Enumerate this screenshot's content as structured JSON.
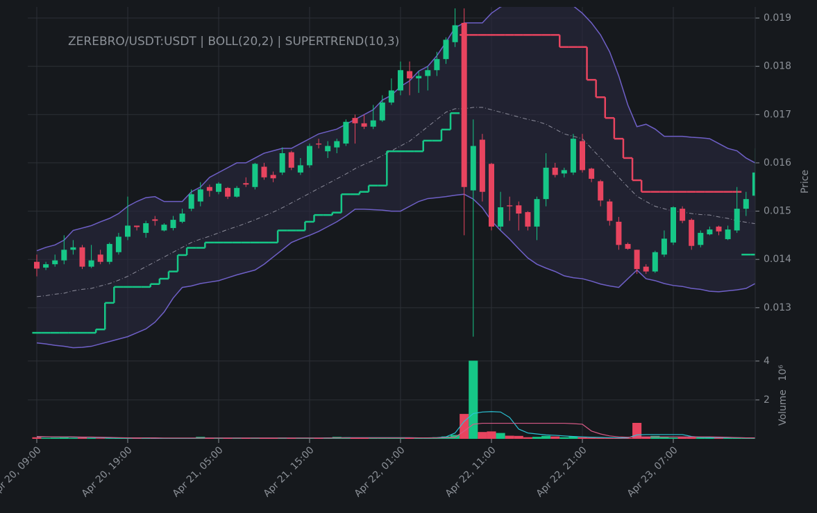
{
  "chart_data": {
    "type": "candlestick",
    "title": "ZEREBRO/USDT:USDT | BOLL(20,2) | SUPERTREND(10,3)",
    "x": [
      "Apr 20, 09:00",
      "Apr 20, 10:00",
      "Apr 20, 11:00",
      "Apr 20, 12:00",
      "Apr 20, 13:00",
      "Apr 20, 14:00",
      "Apr 20, 15:00",
      "Apr 20, 16:00",
      "Apr 20, 17:00",
      "Apr 20, 18:00",
      "Apr 20, 19:00",
      "Apr 20, 20:00",
      "Apr 20, 21:00",
      "Apr 20, 22:00",
      "Apr 20, 23:00",
      "Apr 21, 00:00",
      "Apr 21, 01:00",
      "Apr 21, 02:00",
      "Apr 21, 03:00",
      "Apr 21, 04:00",
      "Apr 21, 05:00",
      "Apr 21, 06:00",
      "Apr 21, 07:00",
      "Apr 21, 08:00",
      "Apr 21, 09:00",
      "Apr 21, 10:00",
      "Apr 21, 11:00",
      "Apr 21, 12:00",
      "Apr 21, 13:00",
      "Apr 21, 14:00",
      "Apr 21, 15:00",
      "Apr 21, 16:00",
      "Apr 21, 17:00",
      "Apr 21, 18:00",
      "Apr 21, 19:00",
      "Apr 21, 20:00",
      "Apr 21, 21:00",
      "Apr 21, 22:00",
      "Apr 21, 23:00",
      "Apr 22, 00:00",
      "Apr 22, 01:00",
      "Apr 22, 02:00",
      "Apr 22, 03:00",
      "Apr 22, 04:00",
      "Apr 22, 05:00",
      "Apr 22, 06:00",
      "Apr 22, 07:00",
      "Apr 22, 08:00",
      "Apr 22, 09:00",
      "Apr 22, 10:00",
      "Apr 22, 11:00",
      "Apr 22, 12:00",
      "Apr 22, 13:00",
      "Apr 22, 14:00",
      "Apr 22, 15:00",
      "Apr 22, 16:00",
      "Apr 22, 17:00",
      "Apr 22, 18:00",
      "Apr 22, 19:00",
      "Apr 22, 20:00",
      "Apr 22, 21:00",
      "Apr 22, 22:00",
      "Apr 22, 23:00",
      "Apr 23, 00:00",
      "Apr 23, 01:00",
      "Apr 23, 02:00",
      "Apr 23, 03:00",
      "Apr 23, 04:00",
      "Apr 23, 05:00",
      "Apr 23, 06:00",
      "Apr 23, 07:00",
      "Apr 23, 08:00",
      "Apr 23, 09:00",
      "Apr 23, 10:00",
      "Apr 23, 11:00",
      "Apr 23, 12:00",
      "Apr 23, 13:00",
      "Apr 23, 14:00",
      "Apr 23, 15:00",
      "Apr 23, 16:00"
    ],
    "open": [
      0.01395,
      0.01383,
      0.0139,
      0.01398,
      0.0142,
      0.01425,
      0.01385,
      0.0141,
      0.01395,
      0.01415,
      0.01447,
      0.0147,
      0.01455,
      0.01483,
      0.0146,
      0.01465,
      0.01478,
      0.01505,
      0.0152,
      0.0155,
      0.0154,
      0.01548,
      0.0153,
      0.01558,
      0.0155,
      0.01592,
      0.01575,
      0.0158,
      0.01622,
      0.0158,
      0.01595,
      0.0164,
      0.01624,
      0.01632,
      0.0164,
      0.01693,
      0.01682,
      0.01675,
      0.01688,
      0.01725,
      0.0175,
      0.0179,
      0.01775,
      0.0178,
      0.01792,
      0.01815,
      0.0185,
      0.0189,
      0.01543,
      0.01648,
      0.01598,
      0.01468,
      0.01512,
      0.01512,
      0.01498,
      0.01468,
      0.01525,
      0.0159,
      0.01578,
      0.0158,
      0.01645,
      0.01588,
      0.01562,
      0.0152,
      0.01478,
      0.01432,
      0.0142,
      0.01385,
      0.01375,
      0.0141,
      0.01435,
      0.01505,
      0.01482,
      0.0143,
      0.01452,
      0.01468,
      0.01442,
      0.0146,
      0.01505,
      0.01532
    ],
    "high": [
      0.0141,
      0.01395,
      0.0141,
      0.0145,
      0.0144,
      0.0143,
      0.0143,
      0.0142,
      0.01435,
      0.01455,
      0.0153,
      0.0147,
      0.0148,
      0.0149,
      0.01475,
      0.0149,
      0.01505,
      0.01545,
      0.0156,
      0.01555,
      0.0156,
      0.0155,
      0.01552,
      0.0157,
      0.016,
      0.016,
      0.01582,
      0.01632,
      0.01625,
      0.0161,
      0.0164,
      0.0165,
      0.01645,
      0.0165,
      0.0169,
      0.017,
      0.017,
      0.0172,
      0.0174,
      0.01775,
      0.0181,
      0.0181,
      0.0179,
      0.018,
      0.0183,
      0.0186,
      0.0192,
      0.0192,
      0.0169,
      0.0166,
      0.016,
      0.0154,
      0.0153,
      0.0152,
      0.015,
      0.0153,
      0.0162,
      0.016,
      0.0159,
      0.0166,
      0.0166,
      0.0159,
      0.01565,
      0.01525,
      0.01488,
      0.01435,
      0.0142,
      0.0139,
      0.01418,
      0.0146,
      0.0151,
      0.0151,
      0.01485,
      0.0146,
      0.01468,
      0.0147,
      0.0147,
      0.0155,
      0.0154,
      0.0163
    ],
    "low": [
      0.01365,
      0.01378,
      0.01385,
      0.0139,
      0.0141,
      0.0138,
      0.01382,
      0.0139,
      0.0139,
      0.0141,
      0.0144,
      0.0146,
      0.01445,
      0.0147,
      0.01458,
      0.0146,
      0.01475,
      0.015,
      0.0151,
      0.0153,
      0.01535,
      0.01525,
      0.01528,
      0.0155,
      0.01545,
      0.01565,
      0.0156,
      0.01575,
      0.01585,
      0.01575,
      0.0159,
      0.0163,
      0.0161,
      0.0162,
      0.01635,
      0.0164,
      0.0167,
      0.0167,
      0.01685,
      0.0172,
      0.0174,
      0.0174,
      0.01745,
      0.0175,
      0.0178,
      0.01805,
      0.0184,
      0.0145,
      0.0124,
      0.0152,
      0.0146,
      0.0146,
      0.0148,
      0.0146,
      0.0146,
      0.0144,
      0.0151,
      0.0157,
      0.0157,
      0.01575,
      0.0158,
      0.0156,
      0.0151,
      0.0147,
      0.0142,
      0.0142,
      0.0137,
      0.0137,
      0.01372,
      0.01405,
      0.0143,
      0.01475,
      0.0142,
      0.01425,
      0.0145,
      0.0145,
      0.0144,
      0.01455,
      0.0149,
      0.0153
    ],
    "close": [
      0.01381,
      0.0139,
      0.01398,
      0.0142,
      0.01425,
      0.01385,
      0.01398,
      0.01395,
      0.01432,
      0.01447,
      0.0147,
      0.01467,
      0.01475,
      0.0148,
      0.01472,
      0.01482,
      0.01495,
      0.01535,
      0.01545,
      0.01542,
      0.01557,
      0.0153,
      0.01548,
      0.01555,
      0.01598,
      0.0157,
      0.01568,
      0.0162,
      0.0159,
      0.01595,
      0.01635,
      0.01638,
      0.01635,
      0.01645,
      0.01685,
      0.01682,
      0.01675,
      0.01688,
      0.01725,
      0.0175,
      0.01792,
      0.01775,
      0.0178,
      0.01792,
      0.01815,
      0.01855,
      0.01885,
      0.0155,
      0.01635,
      0.0154,
      0.01468,
      0.01508,
      0.0151,
      0.01495,
      0.01468,
      0.01525,
      0.0159,
      0.01575,
      0.01585,
      0.0165,
      0.01585,
      0.01567,
      0.01522,
      0.0148,
      0.0143,
      0.01422,
      0.0138,
      0.01375,
      0.01415,
      0.01443,
      0.01508,
      0.0148,
      0.01428,
      0.01455,
      0.01462,
      0.01458,
      0.01462,
      0.01505,
      0.01525,
      0.0158
    ],
    "up_color": "#16c787",
    "down_color": "#e8445f",
    "ylim": [
      0.01205,
      0.01923
    ],
    "yticks": [
      0.013,
      0.014,
      0.015,
      0.016,
      0.017,
      0.018,
      0.019
    ],
    "ylabel": "Price",
    "grid": true,
    "bollinger": {
      "color": "#6f60c8",
      "middle_color": "#8e8e9c",
      "fill": "#2a2840",
      "upper": [
        0.01418,
        0.01425,
        0.0143,
        0.0144,
        0.0146,
        0.01465,
        0.0147,
        0.01478,
        0.01485,
        0.01495,
        0.0151,
        0.0152,
        0.01528,
        0.0153,
        0.0152,
        0.0152,
        0.0152,
        0.0154,
        0.0155,
        0.0157,
        0.0158,
        0.0159,
        0.016,
        0.016,
        0.0161,
        0.0162,
        0.01625,
        0.0163,
        0.0163,
        0.0164,
        0.0165,
        0.0166,
        0.01665,
        0.0167,
        0.0168,
        0.0169,
        0.017,
        0.0171,
        0.0173,
        0.0174,
        0.01758,
        0.0177,
        0.0179,
        0.018,
        0.01822,
        0.0185,
        0.0188,
        0.0189,
        0.0189,
        0.0189,
        0.0191,
        0.01923,
        0.0193,
        0.0193,
        0.0193,
        0.0193,
        0.0193,
        0.0193,
        0.0193,
        0.01925,
        0.0191,
        0.0189,
        0.01865,
        0.0183,
        0.0178,
        0.0172,
        0.01675,
        0.0168,
        0.0167,
        0.01655,
        0.01655,
        0.01655,
        0.01653,
        0.01652,
        0.0165,
        0.0164,
        0.0163,
        0.01625,
        0.0161,
        0.016
      ],
      "middle": [
        0.01323,
        0.01325,
        0.01328,
        0.0133,
        0.01335,
        0.01338,
        0.0134,
        0.01345,
        0.0135,
        0.01357,
        0.01365,
        0.01375,
        0.01385,
        0.01395,
        0.01405,
        0.01415,
        0.01425,
        0.01435,
        0.01442,
        0.01448,
        0.01455,
        0.01462,
        0.01468,
        0.01475,
        0.01482,
        0.0149,
        0.01498,
        0.01507,
        0.01517,
        0.01527,
        0.01537,
        0.01547,
        0.01557,
        0.01567,
        0.01577,
        0.01588,
        0.01597,
        0.01605,
        0.01615,
        0.01625,
        0.01635,
        0.01645,
        0.0166,
        0.01675,
        0.0169,
        0.01705,
        0.01712,
        0.01712,
        0.01715,
        0.01715,
        0.0171,
        0.01705,
        0.017,
        0.01695,
        0.0169,
        0.01686,
        0.0168,
        0.0167,
        0.0166,
        0.01655,
        0.0165,
        0.0163,
        0.0161,
        0.0159,
        0.0157,
        0.0155,
        0.01531,
        0.0152,
        0.0151,
        0.01505,
        0.015,
        0.01498,
        0.01495,
        0.01493,
        0.01492,
        0.01488,
        0.01485,
        0.0148,
        0.01477,
        0.01474
      ],
      "lower": [
        0.01227,
        0.01225,
        0.01222,
        0.0122,
        0.01217,
        0.01218,
        0.0122,
        0.01225,
        0.0123,
        0.01235,
        0.0124,
        0.01248,
        0.01256,
        0.0127,
        0.01291,
        0.0132,
        0.01342,
        0.01345,
        0.0135,
        0.01353,
        0.01356,
        0.01362,
        0.01368,
        0.01373,
        0.01378,
        0.0139,
        0.01405,
        0.0142,
        0.01435,
        0.01443,
        0.0145,
        0.01458,
        0.01468,
        0.01478,
        0.0149,
        0.01504,
        0.01504,
        0.01503,
        0.01502,
        0.015,
        0.015,
        0.0151,
        0.0152,
        0.01526,
        0.01528,
        0.0153,
        0.01533,
        0.01535,
        0.01525,
        0.01507,
        0.0148,
        0.0146,
        0.01442,
        0.01422,
        0.01403,
        0.0139,
        0.01382,
        0.01375,
        0.01366,
        0.01362,
        0.0136,
        0.01355,
        0.01349,
        0.01345,
        0.01342,
        0.0136,
        0.01378,
        0.0136,
        0.01356,
        0.0135,
        0.01346,
        0.01344,
        0.0134,
        0.01338,
        0.01334,
        0.01333,
        0.01335,
        0.01337,
        0.0134,
        0.0135
      ]
    },
    "supertrend": [
      {
        "color": "#16c787",
        "values": [
          0.01248,
          0.01248,
          0.01248,
          0.01248,
          0.01248,
          0.01248,
          0.01248,
          0.01255,
          0.0131,
          0.01343,
          0.01343,
          0.01343,
          0.01343,
          0.01349,
          0.0136,
          0.01375,
          0.01409,
          0.01424,
          0.01424,
          0.01435,
          0.01435,
          0.01435,
          0.01435,
          0.01435,
          0.01435,
          0.01435,
          0.01435,
          0.0146,
          0.0146,
          0.0146,
          0.01478,
          0.01492,
          0.01492,
          0.01497,
          0.01535,
          0.01535,
          0.0154,
          0.01553,
          0.01553,
          0.01624,
          0.01624,
          0.01624,
          0.01624,
          0.01646,
          0.01646,
          0.01669,
          0.01703,
          null,
          null,
          null,
          null,
          null,
          null,
          null,
          null,
          null,
          null,
          null,
          null,
          null,
          null,
          null,
          null,
          null,
          null,
          null,
          null,
          null,
          null,
          null,
          null,
          null,
          null,
          null,
          null,
          null,
          null,
          null,
          0.0141,
          0.0141
        ]
      },
      {
        "color": "#e8445f",
        "values": [
          null,
          null,
          null,
          null,
          null,
          null,
          null,
          null,
          null,
          null,
          null,
          null,
          null,
          null,
          null,
          null,
          null,
          null,
          null,
          null,
          null,
          null,
          null,
          null,
          null,
          null,
          null,
          null,
          null,
          null,
          null,
          null,
          null,
          null,
          null,
          null,
          null,
          null,
          null,
          null,
          null,
          null,
          null,
          null,
          null,
          null,
          null,
          0.01865,
          0.01865,
          0.01865,
          0.01865,
          0.01865,
          0.01865,
          0.01865,
          0.01865,
          0.01865,
          0.01865,
          0.01865,
          0.0184,
          0.0184,
          0.0184,
          0.01772,
          0.01736,
          0.01693,
          0.0165,
          0.0161,
          0.01564,
          0.0154,
          0.0154,
          0.0154,
          0.0154,
          0.0154,
          0.0154,
          0.0154,
          0.0154,
          0.0154,
          0.0154,
          0.0154,
          null,
          null
        ]
      }
    ],
    "volume": {
      "ylabel": "Volume",
      "scale_label": "10⁶",
      "ylim": [
        0,
        4.1
      ],
      "yticks": [
        2,
        4
      ],
      "values": [
        0.08,
        0.05,
        0.06,
        0.07,
        0.05,
        0.06,
        0.04,
        0.03,
        0.03,
        0.04,
        0.03,
        0.02,
        0.03,
        0.02,
        0.02,
        0.02,
        0.03,
        0.04,
        0.1,
        0.03,
        0.03,
        0.02,
        0.03,
        0.02,
        0.05,
        0.03,
        0.02,
        0.06,
        0.03,
        0.03,
        0.04,
        0.03,
        0.06,
        0.1,
        0.08,
        0.06,
        0.05,
        0.07,
        0.05,
        0.05,
        0.06,
        0.05,
        0.04,
        0.05,
        0.08,
        0.12,
        0.2,
        1.28,
        4.02,
        0.35,
        0.38,
        0.3,
        0.16,
        0.15,
        0.08,
        0.1,
        0.15,
        0.12,
        0.08,
        0.12,
        0.08,
        0.06,
        0.05,
        0.05,
        0.04,
        0.04,
        0.82,
        0.1,
        0.15,
        0.1,
        0.06,
        0.08,
        0.08,
        0.07,
        0.06,
        0.05,
        0.04,
        0.06,
        0.05,
        0.04
      ],
      "lines": [
        {
          "color": "#2bc4d6",
          "values": [
            0.1,
            0.1,
            0.1,
            0.1,
            0.09,
            0.08,
            0.07,
            0.06,
            0.05,
            0.05,
            0.04,
            0.04,
            0.04,
            0.03,
            0.03,
            0.03,
            0.03,
            0.03,
            0.04,
            0.04,
            0.04,
            0.04,
            0.04,
            0.04,
            0.04,
            0.04,
            0.04,
            0.04,
            0.04,
            0.04,
            0.04,
            0.04,
            0.05,
            0.05,
            0.06,
            0.06,
            0.06,
            0.06,
            0.06,
            0.06,
            0.06,
            0.06,
            0.05,
            0.05,
            0.06,
            0.1,
            0.3,
            0.9,
            1.3,
            1.38,
            1.4,
            1.38,
            1.1,
            0.5,
            0.3,
            0.25,
            0.2,
            0.18,
            0.15,
            0.12,
            0.1,
            0.08,
            0.07,
            0.06,
            0.05,
            0.05,
            0.2,
            0.22,
            0.22,
            0.22,
            0.22,
            0.22,
            0.12,
            0.08,
            0.07,
            0.06,
            0.06,
            0.06,
            0.05,
            0.05
          ]
        },
        {
          "color": "#d75a86",
          "values": [
            0.12,
            0.11,
            0.1,
            0.1,
            0.1,
            0.09,
            0.09,
            0.08,
            0.07,
            0.06,
            0.05,
            0.05,
            0.05,
            0.05,
            0.04,
            0.04,
            0.04,
            0.04,
            0.04,
            0.04,
            0.04,
            0.04,
            0.04,
            0.04,
            0.04,
            0.04,
            0.04,
            0.04,
            0.04,
            0.04,
            0.04,
            0.04,
            0.04,
            0.05,
            0.05,
            0.05,
            0.05,
            0.05,
            0.05,
            0.05,
            0.05,
            0.05,
            0.05,
            0.05,
            0.05,
            0.06,
            0.08,
            0.4,
            0.75,
            0.8,
            0.8,
            0.8,
            0.8,
            0.8,
            0.8,
            0.8,
            0.8,
            0.8,
            0.8,
            0.78,
            0.75,
            0.4,
            0.25,
            0.15,
            0.1,
            0.08,
            0.1,
            0.1,
            0.1,
            0.1,
            0.1,
            0.1,
            0.1,
            0.1,
            0.1,
            0.09,
            0.08,
            0.06,
            0.05,
            0.05
          ]
        }
      ]
    }
  }
}
